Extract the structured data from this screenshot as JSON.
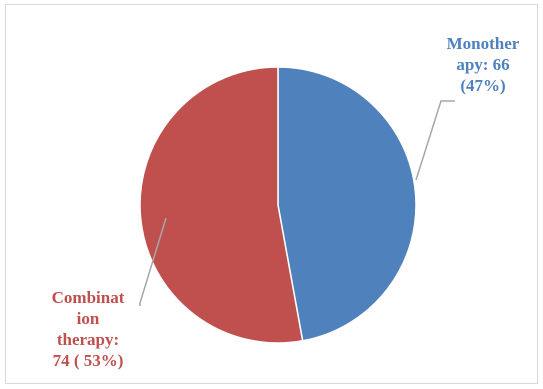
{
  "chart_data": {
    "type": "pie",
    "title": "",
    "slices": [
      {
        "name": "Monotherapy",
        "value": 66,
        "percent": 47,
        "color": "#4f81bd",
        "label_lines": [
          "Monother",
          "apy: 66",
          "(47%)"
        ],
        "label_color": "#4f81bd"
      },
      {
        "name": "Combination therapy",
        "value": 74,
        "percent": 53,
        "color": "#c0504d",
        "label_lines": [
          "Combinat",
          "ion",
          "therapy:",
          "74 ( 53%)"
        ],
        "label_color": "#c0504d"
      }
    ],
    "legend": "none"
  }
}
